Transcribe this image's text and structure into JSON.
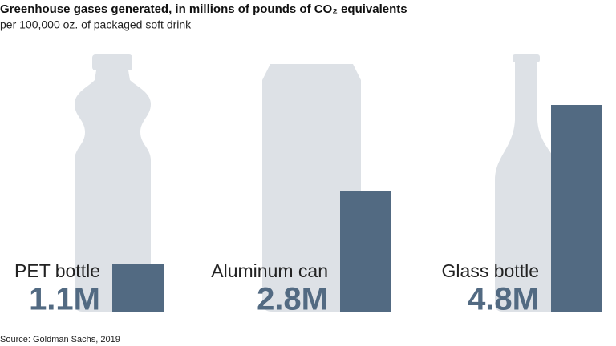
{
  "chart_data": {
    "type": "bar",
    "title": "Greenhouse gases generated, in millions of pounds of CO₂ equivalents",
    "subtitle": "per 100,000 oz. of packaged soft drink",
    "source": "Source: Goldman Sachs, 2019",
    "categories": [
      "PET bottle",
      "Aluminum can",
      "Glass bottle"
    ],
    "values": [
      1.1,
      2.8,
      4.8
    ],
    "value_labels": [
      "1.1M",
      "2.8M",
      "4.8M"
    ],
    "color": "#526a82"
  }
}
